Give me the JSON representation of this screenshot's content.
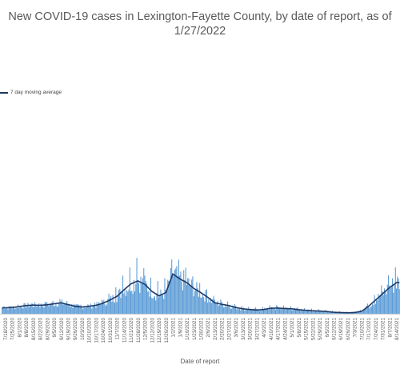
{
  "chart_data": {
    "type": "bar",
    "title": "New COVID-19 cases in Lexington-Fayette County, by date of report, as of 1/27/2022",
    "xlabel": "Date of report",
    "ylabel": "",
    "series": [
      {
        "name": "7 day moving average",
        "kind": "line",
        "color": "#1f3864"
      },
      {
        "kind": "bar",
        "color": "#5b9bd5"
      }
    ],
    "legend_position": "left",
    "grid": false,
    "tick_labels": [
      "7/18/2020",
      "7/25/2020",
      "8/1/2020",
      "8/8/2020",
      "8/15/2020",
      "8/22/2020",
      "8/29/2020",
      "9/5/2020",
      "9/12/2020",
      "9/19/2020",
      "9/26/2020",
      "10/3/2020",
      "10/10/2020",
      "10/17/2020",
      "10/24/2020",
      "10/31/2020",
      "11/7/2020",
      "11/14/2020",
      "11/21/2020",
      "11/28/2020",
      "12/5/2020",
      "12/12/2020",
      "12/19/2020",
      "12/26/2020",
      "1/2/2021",
      "1/9/2021",
      "1/16/2021",
      "1/23/2021",
      "1/30/2021",
      "2/6/2021",
      "2/13/2021",
      "2/20/2021",
      "2/27/2021",
      "3/6/2021",
      "3/13/2021",
      "3/20/2021",
      "3/27/2021",
      "4/3/2021",
      "4/10/2021",
      "4/17/2021",
      "4/24/2021",
      "5/1/2021",
      "5/8/2021",
      "5/15/2021",
      "5/22/2021",
      "5/29/2021",
      "6/5/2021",
      "6/12/2021",
      "6/19/2021",
      "6/26/2021",
      "7/3/2021",
      "7/10/2021",
      "7/17/2021",
      "7/24/2021",
      "7/31/2021",
      "8/7/2021",
      "8/14/2021"
    ],
    "weekly_average": [
      24,
      25,
      29,
      33,
      35,
      34,
      36,
      40,
      44,
      37,
      30,
      27,
      30,
      34,
      42,
      55,
      70,
      96,
      120,
      132,
      118,
      90,
      72,
      85,
      160,
      140,
      125,
      102,
      85,
      66,
      44,
      38,
      33,
      25,
      20,
      17,
      15,
      17,
      22,
      23,
      21,
      20,
      16,
      14,
      12,
      11,
      9,
      6,
      5,
      4,
      5,
      10,
      30,
      55,
      80,
      105,
      125
    ],
    "peak_day": [
      30,
      32,
      38,
      40,
      44,
      42,
      48,
      52,
      60,
      50,
      38,
      36,
      38,
      46,
      58,
      85,
      110,
      160,
      190,
      230,
      175,
      140,
      130,
      145,
      230,
      215,
      180,
      145,
      120,
      95,
      68,
      55,
      48,
      38,
      30,
      28,
      25,
      28,
      35,
      34,
      33,
      30,
      25,
      22,
      20,
      18,
      15,
      12,
      10,
      8,
      9,
      16,
      45,
      80,
      120,
      160,
      190
    ],
    "ylim": [
      0,
      900
    ]
  }
}
